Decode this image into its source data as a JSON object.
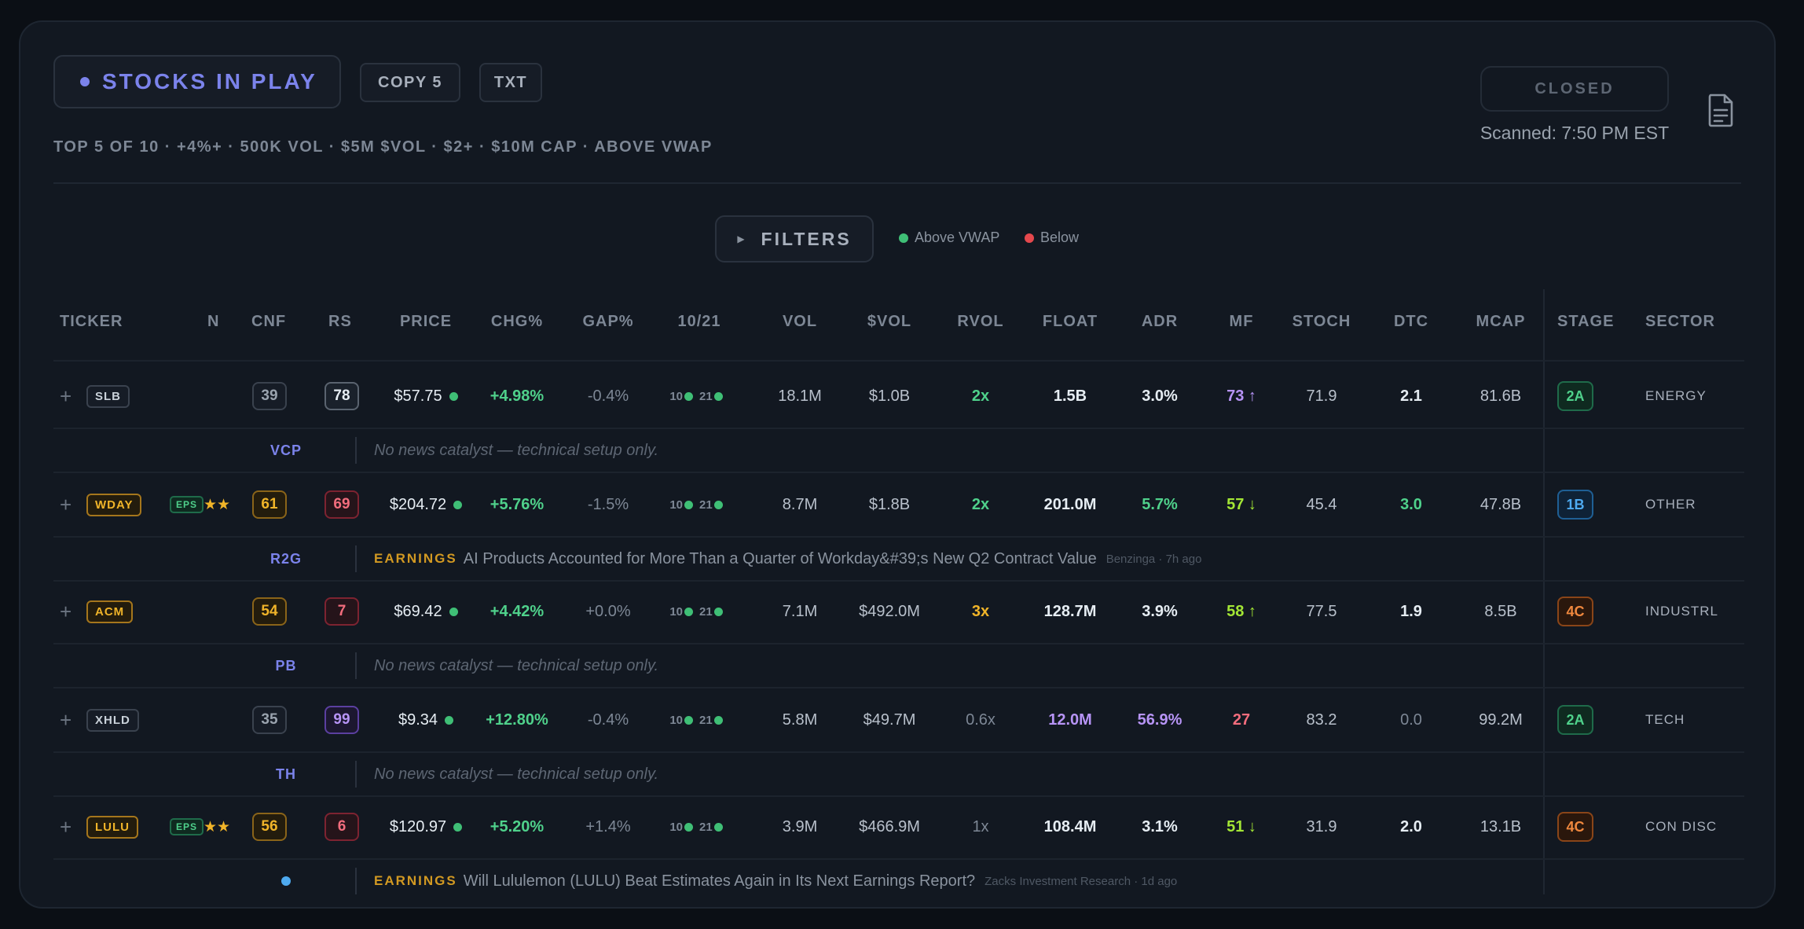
{
  "header": {
    "title": "STOCKS IN PLAY",
    "copy_label": "COPY 5",
    "txt_label": "TXT",
    "subtitle": "TOP 5 OF 10 · +4%+ · 500K VOL · $5M $VOL · $2+ · $10M CAP · ABOVE VWAP",
    "market_status": "CLOSED",
    "scanned": "Scanned: 7:50 PM EST",
    "doc_icon": "document-icon"
  },
  "filters": {
    "label": "FILTERS",
    "above_label": "Above VWAP",
    "below_label": "Below",
    "above_color": "#3fbf76",
    "below_color": "#e5484d"
  },
  "columns": [
    "TICKER",
    "N",
    "CNF",
    "RS",
    "PRICE",
    "CHG%",
    "GAP%",
    "10/21",
    "VOL",
    "$VOL",
    "RVOL",
    "FLOAT",
    "ADR",
    "MF",
    "STOCH",
    "DTC",
    "MCAP",
    "STAGE",
    "SECTOR"
  ],
  "rows": [
    {
      "ticker": "SLB",
      "eps": "",
      "stars": "",
      "cnf": "39",
      "rs": "78",
      "price": "$57.75",
      "chg": "+4.98%",
      "gap": "-0.4%",
      "sma10": "10",
      "sma21": "21",
      "vol": "18.1M",
      "dvol": "$1.0B",
      "rvol": "2x",
      "float": "1.5B",
      "adr": "3.0%",
      "mf": "73 ↑",
      "stoch": "71.9",
      "dtc": "2.1",
      "mcap": "81.6B",
      "stage": "2A",
      "sector": "ENERGY",
      "pattern": "VCP",
      "news_category": "",
      "news_headline": "No news catalyst — technical setup only.",
      "news_source": ""
    },
    {
      "ticker": "WDAY",
      "eps": "EPS",
      "stars": "★★",
      "cnf": "61",
      "rs": "69",
      "price": "$204.72",
      "chg": "+5.76%",
      "gap": "-1.5%",
      "sma10": "10",
      "sma21": "21",
      "vol": "8.7M",
      "dvol": "$1.8B",
      "rvol": "2x",
      "float": "201.0M",
      "adr": "5.7%",
      "mf": "57 ↓",
      "stoch": "45.4",
      "dtc": "3.0",
      "mcap": "47.8B",
      "stage": "1B",
      "sector": "OTHER",
      "pattern": "R2G",
      "news_category": "EARNINGS",
      "news_headline": "AI Products Accounted for More Than a Quarter of Workday&#39;s New Q2 Contract Value",
      "news_source": "Benzinga · 7h ago"
    },
    {
      "ticker": "ACM",
      "eps": "",
      "stars": "",
      "cnf": "54",
      "rs": "7",
      "price": "$69.42",
      "chg": "+4.42%",
      "gap": "+0.0%",
      "sma10": "10",
      "sma21": "21",
      "vol": "7.1M",
      "dvol": "$492.0M",
      "rvol": "3x",
      "float": "128.7M",
      "adr": "3.9%",
      "mf": "58 ↑",
      "stoch": "77.5",
      "dtc": "1.9",
      "mcap": "8.5B",
      "stage": "4C",
      "sector": "INDUSTRL",
      "pattern": "PB",
      "news_category": "",
      "news_headline": "No news catalyst — technical setup only.",
      "news_source": ""
    },
    {
      "ticker": "XHLD",
      "eps": "",
      "stars": "",
      "cnf": "35",
      "rs": "99",
      "price": "$9.34",
      "chg": "+12.80%",
      "gap": "-0.4%",
      "sma10": "10",
      "sma21": "21",
      "vol": "5.8M",
      "dvol": "$49.7M",
      "rvol": "0.6x",
      "float": "12.0M",
      "adr": "56.9%",
      "mf": "27",
      "stoch": "83.2",
      "dtc": "0.0",
      "mcap": "99.2M",
      "stage": "2A",
      "sector": "TECH",
      "pattern": "TH",
      "news_category": "",
      "news_headline": "No news catalyst — technical setup only.",
      "news_source": ""
    },
    {
      "ticker": "LULU",
      "eps": "EPS",
      "stars": "★★",
      "cnf": "56",
      "rs": "6",
      "price": "$120.97",
      "chg": "+5.20%",
      "gap": "+1.4%",
      "sma10": "10",
      "sma21": "21",
      "vol": "3.9M",
      "dvol": "$466.9M",
      "rvol": "1x",
      "float": "108.4M",
      "adr": "3.1%",
      "mf": "51 ↓",
      "stoch": "31.9",
      "dtc": "2.0",
      "mcap": "13.1B",
      "stage": "4C",
      "sector": "CON DISC",
      "pattern": "",
      "news_category": "EARNINGS",
      "news_headline": "Will Lululemon (LULU) Beat Estimates Again in Its Next Earnings Report?",
      "news_source": "Zacks Investment Research · 1d ago"
    }
  ],
  "plus_symbol": "+"
}
